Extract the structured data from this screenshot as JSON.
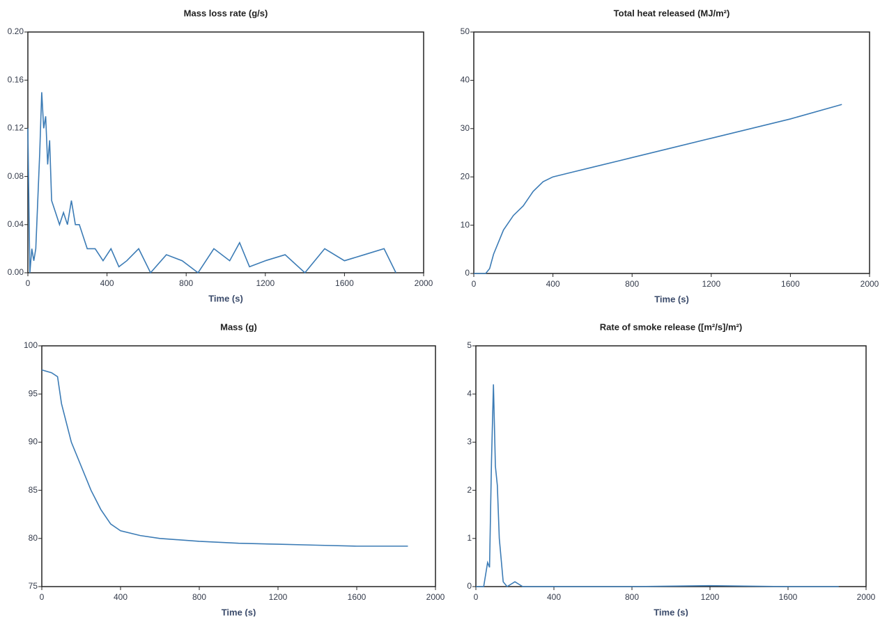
{
  "chart_data": [
    {
      "type": "line",
      "title": "Mass loss rate (g/s)",
      "x_label": "Time (s)",
      "color": "#3b7bb5",
      "x": [
        0,
        10,
        20,
        30,
        40,
        50,
        60,
        70,
        80,
        90,
        100,
        110,
        120,
        140,
        160,
        180,
        200,
        220,
        240,
        260,
        280,
        300,
        340,
        380,
        420,
        460,
        500,
        560,
        620,
        700,
        780,
        860,
        940,
        1020,
        1070,
        1120,
        1200,
        1300,
        1400,
        1500,
        1600,
        1700,
        1800,
        1860
      ],
      "values": [
        0.12,
        0.0,
        0.02,
        0.01,
        0.02,
        0.06,
        0.1,
        0.15,
        0.12,
        0.13,
        0.09,
        0.11,
        0.06,
        0.05,
        0.04,
        0.05,
        0.04,
        0.06,
        0.04,
        0.04,
        0.03,
        0.02,
        0.02,
        0.01,
        0.02,
        0.005,
        0.01,
        0.02,
        0.0,
        0.015,
        0.01,
        0.0,
        0.02,
        0.01,
        0.025,
        0.005,
        0.01,
        0.015,
        0.0,
        0.02,
        0.01,
        0.015,
        0.02,
        0.0
      ],
      "xlim": [
        0,
        2000
      ],
      "xticks": [
        0,
        400,
        800,
        1200,
        1600,
        2000
      ],
      "ylim": [
        0,
        0.2
      ],
      "yticks": [
        {
          "value": 0,
          "label": "0.00"
        },
        {
          "value": 0.04,
          "label": "0.04"
        },
        {
          "value": 0.08,
          "label": "0.08"
        },
        {
          "value": 0.12,
          "label": "0.12"
        },
        {
          "value": 0.16,
          "label": "0.16"
        },
        {
          "value": 0.2,
          "label": "0.20"
        }
      ]
    },
    {
      "type": "line",
      "title": "Total heat released (MJ/m²)",
      "x_label": "Time (s)",
      "color": "#3b7bb5",
      "x": [
        0,
        60,
        80,
        100,
        150,
        200,
        250,
        300,
        350,
        400,
        500,
        600,
        800,
        1000,
        1200,
        1400,
        1600,
        1860
      ],
      "values": [
        0,
        0,
        1,
        4,
        9,
        12,
        14,
        17,
        19,
        20,
        21,
        22,
        24,
        26,
        28,
        30,
        32,
        35
      ],
      "xlim": [
        0,
        2000
      ],
      "xticks": [
        0,
        400,
        800,
        1200,
        1600,
        2000
      ],
      "ylim": [
        0,
        50
      ],
      "yticks": [
        0,
        10,
        20,
        30,
        40,
        50
      ]
    },
    {
      "type": "line",
      "title": "Mass (g)",
      "x_label": "Time (s)",
      "color": "#3b7bb5",
      "x": [
        0,
        50,
        80,
        100,
        150,
        200,
        250,
        300,
        350,
        400,
        500,
        600,
        800,
        1000,
        1200,
        1400,
        1600,
        1860
      ],
      "values": [
        97.5,
        97.2,
        96.8,
        94,
        90,
        87.5,
        85,
        83,
        81.5,
        80.8,
        80.3,
        80,
        79.7,
        79.5,
        79.4,
        79.3,
        79.2,
        79.2
      ],
      "xlim": [
        0,
        2000
      ],
      "xticks": [
        0,
        400,
        800,
        1200,
        1600,
        2000
      ],
      "ylim": [
        75,
        100
      ],
      "yticks": [
        75,
        80,
        85,
        90,
        95,
        100
      ]
    },
    {
      "type": "line",
      "title": "Rate of smoke release ([m²/s]/m²)",
      "x_label": "Time (s)",
      "color": "#3b7bb5",
      "x": [
        0,
        40,
        60,
        70,
        80,
        90,
        100,
        110,
        120,
        140,
        160,
        200,
        240,
        400,
        800,
        1200,
        1600,
        1860
      ],
      "values": [
        0,
        0,
        0.5,
        0.4,
        2.6,
        4.2,
        2.5,
        2.1,
        1,
        0.1,
        0,
        0.1,
        0,
        0,
        0,
        0.02,
        0,
        0
      ],
      "xlim": [
        0,
        2000
      ],
      "xticks": [
        0,
        400,
        800,
        1200,
        1600,
        2000
      ],
      "ylim": [
        0,
        5
      ],
      "yticks": [
        0,
        1,
        2,
        3,
        4,
        5
      ]
    }
  ]
}
